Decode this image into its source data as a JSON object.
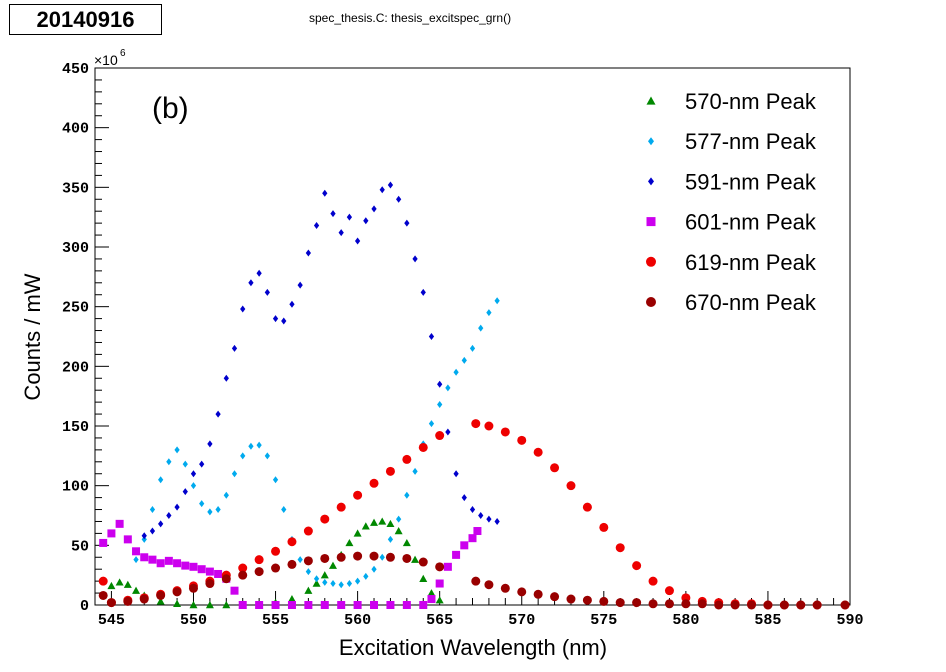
{
  "stamp": {
    "text": "20140916"
  },
  "header": {
    "title": "spec_thesis.C:  thesis_excitspec_grn()"
  },
  "chart_data": {
    "type": "scatter",
    "panel_label": "(b)",
    "xlabel": "Excitation Wavelength (nm)",
    "ylabel": "Counts / mW",
    "y_multiplier": "×10",
    "y_multiplier_exponent": "6",
    "xlim": [
      544,
      590
    ],
    "ylim": [
      0,
      450
    ],
    "x_ticks": [
      545,
      550,
      555,
      560,
      565,
      570,
      575,
      580,
      585,
      590
    ],
    "y_ticks": [
      0,
      50,
      100,
      150,
      200,
      250,
      300,
      350,
      400,
      450
    ],
    "legend_position": "top-right",
    "grid": false,
    "series": [
      {
        "name": "570-nm Peak",
        "color": "#008800",
        "marker": "triangle",
        "x": [
          545,
          545.5,
          546,
          546.5,
          547,
          548,
          549,
          550,
          551,
          552,
          553,
          554,
          555,
          556,
          557,
          557.5,
          558,
          558.5,
          559,
          559.5,
          560,
          560.5,
          561,
          561.5,
          562,
          562.5,
          563,
          563.5,
          564,
          564.5,
          565
        ],
        "y": [
          16,
          19,
          17,
          12,
          8,
          3,
          1,
          0,
          0,
          0,
          0,
          0,
          2,
          5,
          12,
          18,
          25,
          33,
          42,
          52,
          60,
          66,
          69,
          70,
          68,
          62,
          52,
          38,
          22,
          10,
          4
        ]
      },
      {
        "name": "577-nm Peak",
        "color": "#00aaee",
        "marker": "diamond",
        "x": [
          546.5,
          547,
          547.5,
          548,
          548.5,
          549,
          549.5,
          550,
          550.5,
          551,
          551.5,
          552,
          552.5,
          553,
          553.5,
          554,
          554.5,
          555,
          555.5,
          556,
          556.5,
          557,
          557.5,
          558,
          558.5,
          559,
          559.5,
          560,
          560.5,
          561,
          561.5,
          562,
          562.5,
          563,
          563.5,
          564,
          564.5,
          565,
          565.5,
          566,
          566.5,
          567,
          567.5,
          568,
          568.5
        ],
        "y": [
          38,
          55,
          80,
          105,
          120,
          130,
          118,
          100,
          85,
          78,
          80,
          92,
          110,
          125,
          133,
          134,
          125,
          105,
          80,
          55,
          38,
          28,
          22,
          19,
          18,
          17,
          18,
          20,
          24,
          30,
          40,
          55,
          72,
          92,
          112,
          135,
          152,
          168,
          182,
          195,
          205,
          215,
          232,
          245,
          255
        ]
      },
      {
        "name": "591-nm Peak",
        "color": "#0000cc",
        "marker": "diamond",
        "x": [
          547,
          547.5,
          548,
          548.5,
          549,
          549.5,
          550,
          550.5,
          551,
          551.5,
          552,
          552.5,
          553,
          553.5,
          554,
          554.5,
          555,
          555.5,
          556,
          556.5,
          557,
          557.5,
          558,
          558.5,
          559,
          559.5,
          560,
          560.5,
          561,
          561.5,
          562,
          562.5,
          563,
          563.5,
          564,
          564.5,
          565,
          565.5,
          566,
          566.5,
          567,
          567.5,
          568,
          568.5
        ],
        "y": [
          58,
          62,
          68,
          75,
          82,
          95,
          110,
          118,
          135,
          160,
          190,
          215,
          248,
          270,
          278,
          262,
          240,
          238,
          252,
          268,
          295,
          318,
          345,
          328,
          312,
          325,
          305,
          322,
          332,
          348,
          352,
          340,
          320,
          290,
          262,
          225,
          185,
          145,
          110,
          90,
          80,
          75,
          72,
          70
        ]
      },
      {
        "name": "601-nm Peak",
        "color": "#cc00ee",
        "marker": "square",
        "x": [
          544.5,
          545,
          545.5,
          546,
          546.5,
          547,
          547.5,
          548,
          548.5,
          549,
          549.5,
          550,
          550.5,
          551,
          551.5,
          552,
          552.5,
          553,
          554,
          555,
          556,
          557,
          558,
          559,
          560,
          561,
          562,
          563,
          564,
          564.5,
          565,
          565.5,
          566,
          566.5,
          567,
          567.3
        ],
        "y": [
          52,
          60,
          68,
          55,
          45,
          40,
          38,
          35,
          37,
          35,
          33,
          32,
          30,
          28,
          26,
          22,
          12,
          0,
          0,
          0,
          0,
          0,
          0,
          0,
          0,
          0,
          0,
          0,
          0,
          5,
          18,
          32,
          42,
          50,
          56,
          62
        ]
      },
      {
        "name": "619-nm Peak",
        "color": "#ee0000",
        "marker": "circle",
        "x": [
          544.5,
          545,
          546,
          547,
          548,
          549,
          550,
          551,
          552,
          553,
          554,
          555,
          556,
          557,
          558,
          559,
          560,
          561,
          562,
          563,
          564,
          565,
          567.2,
          568,
          569,
          570,
          571,
          572,
          573,
          574,
          575,
          576,
          577,
          578,
          579,
          580,
          581,
          582,
          583,
          584,
          585,
          586,
          587,
          588,
          589.7
        ],
        "y": [
          20,
          2,
          4,
          6,
          9,
          12,
          16,
          20,
          25,
          31,
          38,
          45,
          53,
          62,
          72,
          82,
          92,
          102,
          112,
          122,
          132,
          142,
          152,
          150,
          145,
          138,
          128,
          115,
          100,
          82,
          65,
          48,
          33,
          20,
          12,
          6,
          3,
          2,
          1,
          1,
          0,
          0,
          0,
          0,
          0
        ]
      },
      {
        "name": "670-nm Peak",
        "color": "#990000",
        "marker": "circle",
        "x": [
          544.5,
          545,
          546,
          547,
          548,
          549,
          550,
          551,
          552,
          553,
          554,
          555,
          556,
          557,
          558,
          559,
          560,
          561,
          562,
          563,
          564,
          565,
          567.2,
          568,
          569,
          570,
          571,
          572,
          573,
          574,
          575,
          576,
          577,
          578,
          579,
          580,
          581,
          582,
          583,
          584,
          585,
          586,
          587,
          588,
          589.7
        ],
        "y": [
          8,
          2,
          3,
          5,
          8,
          11,
          14,
          18,
          22,
          25,
          28,
          31,
          34,
          37,
          39,
          40,
          41,
          41,
          40,
          39,
          36,
          32,
          20,
          17,
          14,
          11,
          9,
          7,
          5,
          4,
          3,
          2,
          2,
          1,
          1,
          1,
          1,
          0,
          0,
          0,
          0,
          0,
          0,
          0,
          0
        ]
      }
    ]
  }
}
